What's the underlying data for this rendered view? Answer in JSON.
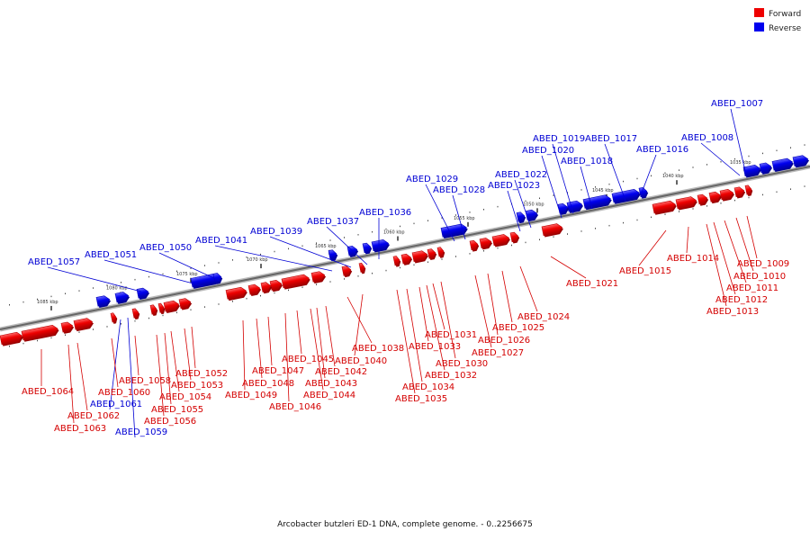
{
  "legend": {
    "forward": {
      "label": "Forward",
      "color": "#ee0000"
    },
    "reverse": {
      "label": "Reverse",
      "color": "#0000ee"
    }
  },
  "footer": "Arcobacter butzleri ED-1 DNA, complete genome. - 0..2256675",
  "axis": {
    "ticks": [
      "1035 kbp",
      "1040 kbp",
      "1045 kbp",
      "1050 kbp",
      "1055 kbp",
      "1060 kbp",
      "1065 kbp",
      "1070 kbp",
      "1075 kbp",
      "1080 kbp",
      "1085 kbp"
    ]
  },
  "genes": {
    "reverse": [
      "ABED_1007",
      "ABED_1008",
      "ABED_1016",
      "ABED_1017",
      "ABED_1018",
      "ABED_1019",
      "ABED_1020",
      "ABED_1022",
      "ABED_1023",
      "ABED_1028",
      "ABED_1029",
      "ABED_1036",
      "ABED_1037",
      "ABED_1039",
      "ABED_1041",
      "ABED_1050",
      "ABED_1051",
      "ABED_1057",
      "ABED_1059",
      "ABED_1061"
    ],
    "forward": [
      "ABED_1009",
      "ABED_1010",
      "ABED_1011",
      "ABED_1012",
      "ABED_1013",
      "ABED_1014",
      "ABED_1015",
      "ABED_1021",
      "ABED_1024",
      "ABED_1025",
      "ABED_1026",
      "ABED_1027",
      "ABED_1030",
      "ABED_1031",
      "ABED_1032",
      "ABED_1033",
      "ABED_1034",
      "ABED_1035",
      "ABED_1038",
      "ABED_1040",
      "ABED_1042",
      "ABED_1043",
      "ABED_1044",
      "ABED_1045",
      "ABED_1046",
      "ABED_1047",
      "ABED_1048",
      "ABED_1049",
      "ABED_1052",
      "ABED_1053",
      "ABED_1054",
      "ABED_1055",
      "ABED_1056",
      "ABED_1058",
      "ABED_1060",
      "ABED_1062",
      "ABED_1063",
      "ABED_1064"
    ]
  }
}
